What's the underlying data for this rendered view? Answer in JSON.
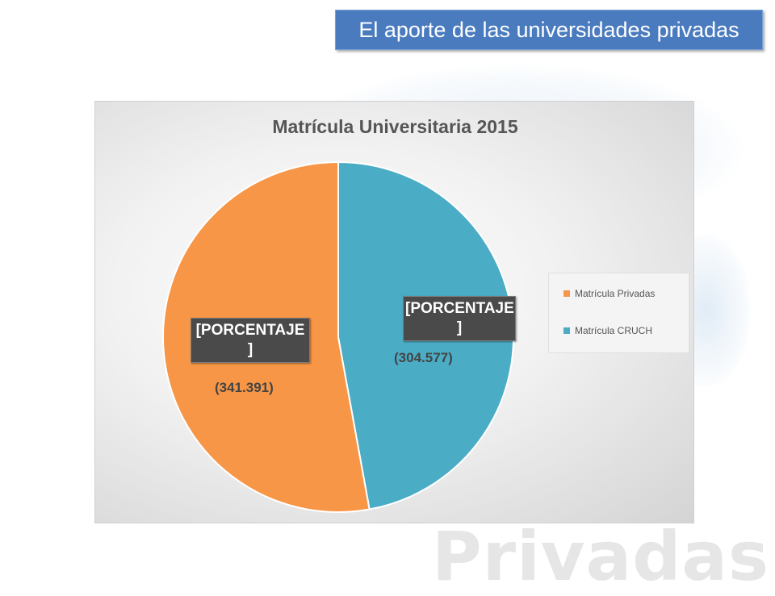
{
  "slide": {
    "banner_title": "El aporte de las universidades privadas",
    "watermark_text": "Privadas"
  },
  "chart_data": {
    "type": "pie",
    "title": "Matrícula Universitaria 2015",
    "categories": [
      "Matrícula Privadas",
      "Matrícula CRUCH"
    ],
    "values": [
      341391,
      304577
    ],
    "value_labels": [
      "(341.391)",
      "(304.577)"
    ],
    "data_labels": [
      "[PORCENTAJE ]",
      "[PORCENTAJE ]"
    ],
    "colors": [
      "#f79646",
      "#4bacc6"
    ],
    "legend": {
      "position": "right",
      "items": [
        "Matrícula Privadas",
        "Matrícula CRUCH"
      ]
    }
  }
}
